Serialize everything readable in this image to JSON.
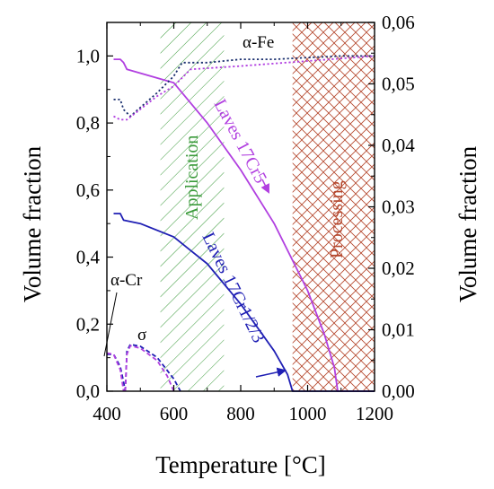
{
  "chart_data": {
    "type": "line",
    "xlabel": "Temperature [°C]",
    "ylabel_left": "Volume fraction",
    "ylabel_right": "Volume fraction",
    "xlim": [
      400,
      1200
    ],
    "ylim_left": [
      0,
      1.1
    ],
    "ylim_right": [
      0,
      0.06
    ],
    "x_ticks": [
      400,
      600,
      800,
      1000,
      1200
    ],
    "x_tick_labels": [
      "400",
      "600",
      "800",
      "1000",
      "1200"
    ],
    "y_left_ticks": [
      0,
      0.2,
      0.4,
      0.6,
      0.8,
      1.0
    ],
    "y_left_tick_labels": [
      "0,0",
      "0,2",
      "0,4",
      "0,6",
      "0,8",
      "1,0"
    ],
    "y_right_ticks": [
      0,
      0.01,
      0.02,
      0.03,
      0.04,
      0.05,
      0.06
    ],
    "y_right_tick_labels": [
      "0,00",
      "0,01",
      "0,02",
      "0,03",
      "0,04",
      "0,05",
      "0,06"
    ],
    "regions": [
      {
        "label": "Application",
        "x_range": [
          560,
          750
        ],
        "color": "#3a9a3a",
        "pattern": "diagonal-hatch"
      },
      {
        "label": "Processing",
        "x_range": [
          955,
          1200
        ],
        "color": "#b4462c",
        "pattern": "cross-hatch"
      }
    ],
    "series": [
      {
        "name": "Laves 17Cr5",
        "color": "#b13fe0",
        "style": "solid",
        "axis": "left",
        "x": [
          420,
          440,
          450,
          460,
          600,
          650,
          700,
          800,
          900,
          1000,
          1050,
          1080,
          1090,
          1200
        ],
        "y": [
          0.99,
          0.99,
          0.98,
          0.96,
          0.92,
          0.86,
          0.8,
          0.66,
          0.5,
          0.3,
          0.17,
          0.07,
          0.0,
          0.0
        ]
      },
      {
        "name": "Laves 17Cr1/2/3",
        "color": "#1f1fb4",
        "style": "solid",
        "axis": "left",
        "x": [
          420,
          440,
          450,
          500,
          600,
          650,
          700,
          800,
          900,
          940,
          955,
          1200
        ],
        "y": [
          0.53,
          0.53,
          0.51,
          0.5,
          0.46,
          0.42,
          0.38,
          0.26,
          0.12,
          0.05,
          0.0,
          0.0
        ]
      },
      {
        "name": "α-Fe",
        "color": "#1a2f6e",
        "style": "dotted",
        "axis": "left",
        "x": [
          420,
          440,
          450,
          470,
          550,
          600,
          625,
          700,
          800,
          900,
          1000,
          1100,
          1200
        ],
        "y": [
          0.87,
          0.87,
          0.84,
          0.82,
          0.89,
          0.94,
          0.98,
          0.98,
          0.99,
          0.99,
          0.995,
          1.0,
          1.0
        ]
      },
      {
        "name": "α-Fe (second alloy)",
        "color": "#b13fe0",
        "style": "dotted",
        "axis": "left",
        "x": [
          420,
          440,
          460,
          550,
          600,
          650,
          800,
          1000,
          1200
        ],
        "y": [
          0.82,
          0.81,
          0.81,
          0.88,
          0.91,
          0.96,
          0.97,
          0.985,
          1.0
        ]
      },
      {
        "name": "α-Cr",
        "color": "#1f1fb4",
        "style": "dashed",
        "axis": "right",
        "x": [
          400,
          420,
          440,
          450,
          455
        ],
        "y": [
          0.006,
          0.006,
          0.004,
          0.0015,
          0.0
        ]
      },
      {
        "name": "α-Cr (second alloy)",
        "color": "#b13fe0",
        "style": "dashed",
        "axis": "right",
        "x": [
          400,
          420,
          440,
          450
        ],
        "y": [
          0.0062,
          0.006,
          0.0035,
          0.0
        ]
      },
      {
        "name": "σ",
        "color": "#1f1fb4",
        "style": "dashed",
        "axis": "right",
        "x": [
          455,
          460,
          470,
          500,
          550,
          600,
          620
        ],
        "y": [
          0.0,
          0.0065,
          0.0076,
          0.0073,
          0.0055,
          0.002,
          0.0
        ]
      },
      {
        "name": "σ (second alloy)",
        "color": "#b13fe0",
        "style": "dashed",
        "axis": "right",
        "x": [
          455,
          460,
          470,
          500,
          550,
          580,
          600
        ],
        "y": [
          0.0,
          0.006,
          0.0074,
          0.007,
          0.005,
          0.0025,
          0.0
        ]
      }
    ],
    "annotations": [
      {
        "text": "α-Fe",
        "color": "#000000"
      },
      {
        "text": "Application",
        "color": "#3a9a3a"
      },
      {
        "text": "Processing",
        "color": "#b4462c"
      },
      {
        "text": "Laves 17Cr5",
        "color": "#b13fe0"
      },
      {
        "text": "Laves 17Cr1/2/3",
        "color": "#1f1fb4"
      },
      {
        "text": "α-Cr",
        "color": "#000000"
      },
      {
        "text": "σ",
        "color": "#000000"
      }
    ]
  }
}
